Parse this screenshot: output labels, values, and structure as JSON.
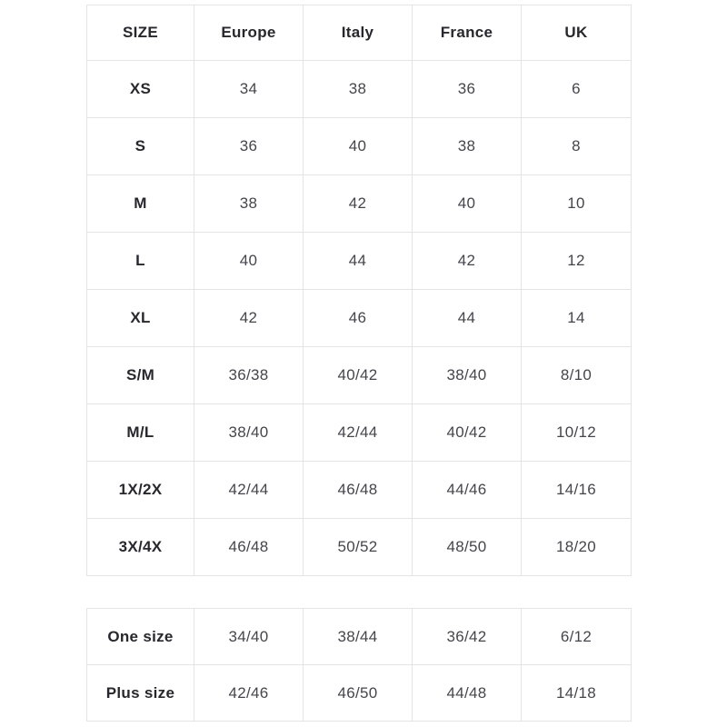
{
  "colors": {
    "background": "#ffffff",
    "cell_border": "#e4e4e4",
    "header_text": "#28272d",
    "value_text": "#45454c"
  },
  "size_table": {
    "headers": [
      "SIZE",
      "Europe",
      "Italy",
      "France",
      "UK"
    ],
    "rows": [
      {
        "label": "XS",
        "values": [
          "34",
          "38",
          "36",
          "6"
        ]
      },
      {
        "label": "S",
        "values": [
          "36",
          "40",
          "38",
          "8"
        ]
      },
      {
        "label": "M",
        "values": [
          "38",
          "42",
          "40",
          "10"
        ]
      },
      {
        "label": "L",
        "values": [
          "40",
          "44",
          "42",
          "12"
        ]
      },
      {
        "label": "XL",
        "values": [
          "42",
          "46",
          "44",
          "14"
        ]
      },
      {
        "label": "S/M",
        "values": [
          "36/38",
          "40/42",
          "38/40",
          "8/10"
        ]
      },
      {
        "label": "M/L",
        "values": [
          "38/40",
          "42/44",
          "40/42",
          "10/12"
        ]
      },
      {
        "label": "1X/2X",
        "values": [
          "42/44",
          "46/48",
          "44/46",
          "14/16"
        ]
      },
      {
        "label": "3X/4X",
        "values": [
          "46/48",
          "50/52",
          "48/50",
          "18/20"
        ]
      }
    ]
  },
  "special_table": {
    "rows": [
      {
        "label": "One size",
        "values": [
          "34/40",
          "38/44",
          "36/42",
          "6/12"
        ]
      },
      {
        "label": "Plus size",
        "values": [
          "42/46",
          "46/50",
          "44/48",
          "14/18"
        ]
      }
    ]
  }
}
